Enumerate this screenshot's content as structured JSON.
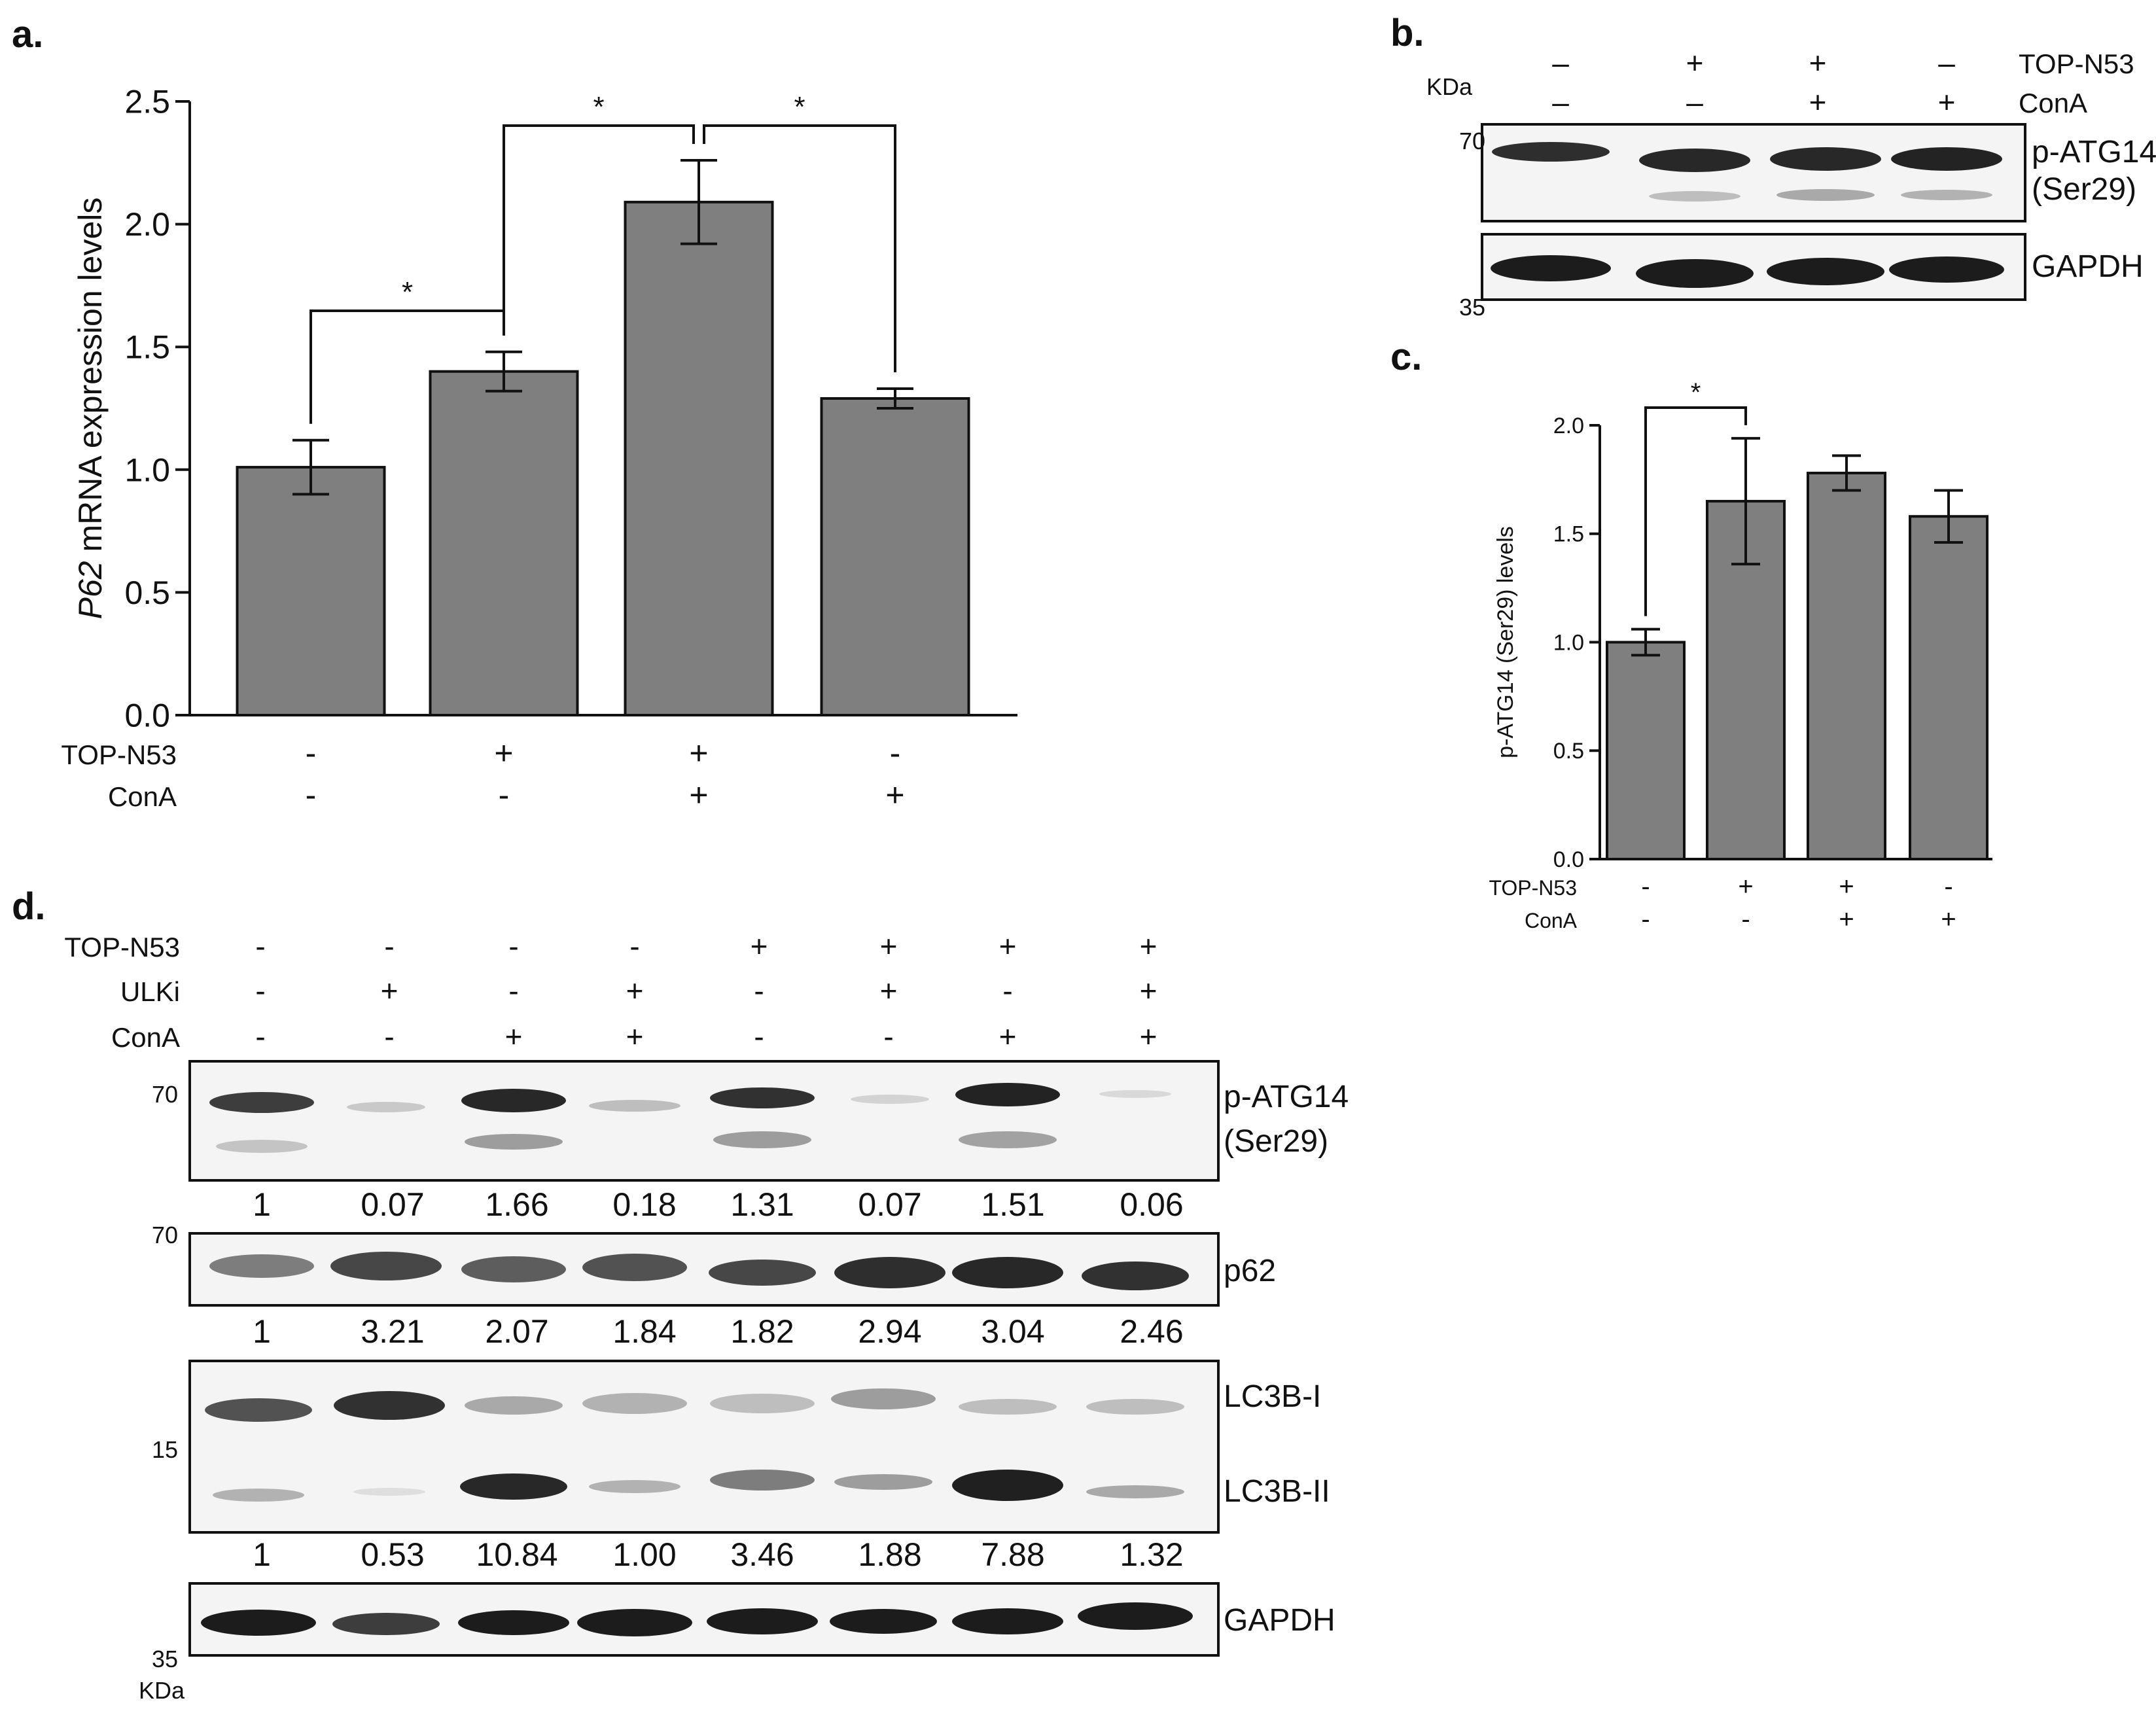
{
  "panel_a": {
    "label": "a.",
    "chart_data": {
      "type": "bar",
      "ylabel_italic": "P62",
      "ylabel_rest": " mRNA expression levels",
      "ylim": [
        0,
        2.5
      ],
      "yticks": [
        "0.0",
        "0.5",
        "1.0",
        "1.5",
        "2.0",
        "2.5"
      ],
      "ytick_values": [
        0,
        0.5,
        1.0,
        1.5,
        2.0,
        2.5
      ],
      "values": [
        1.01,
        1.4,
        2.09,
        1.29
      ],
      "errors": [
        0.11,
        0.08,
        0.17,
        0.04
      ],
      "significance": [
        {
          "from": 0,
          "to": 1,
          "label": "*"
        },
        {
          "from": 1,
          "to": 2,
          "label": "*"
        },
        {
          "from": 2,
          "to": 3,
          "label": "*"
        }
      ],
      "conditions": [
        {
          "name": "TOP-N53",
          "signs": [
            "-",
            "+",
            "+",
            "-"
          ]
        },
        {
          "name": "ConA",
          "signs": [
            "-",
            "-",
            "+",
            "+"
          ]
        }
      ]
    }
  },
  "panel_b": {
    "label": "b.",
    "kda_label": "KDa",
    "conditions": [
      {
        "name": "TOP-N53",
        "signs": [
          "–",
          "+",
          "+",
          "–"
        ]
      },
      {
        "name": "ConA",
        "signs": [
          "–",
          "–",
          "+",
          "+"
        ]
      }
    ],
    "blots": [
      {
        "protein_line1": "p-ATG14",
        "protein_line2": "(Ser29)",
        "mw": "70"
      },
      {
        "protein_line1": "GAPDH",
        "protein_line2": "",
        "mw": "35"
      }
    ]
  },
  "panel_c": {
    "label": "c.",
    "chart_data": {
      "type": "bar",
      "ylabel": "p-ATG14 (Ser29) levels",
      "ylim": [
        0,
        2.0
      ],
      "yticks": [
        "0.0",
        "0.5",
        "1.0",
        "1.5",
        "2.0"
      ],
      "ytick_values": [
        0,
        0.5,
        1.0,
        1.5,
        2.0
      ],
      "values": [
        1.0,
        1.65,
        1.78,
        1.58
      ],
      "errors": [
        0.06,
        0.29,
        0.08,
        0.12
      ],
      "significance": [
        {
          "from": 0,
          "to": 1,
          "label": "*"
        }
      ],
      "conditions": [
        {
          "name": "TOP-N53",
          "signs": [
            "-",
            "+",
            "+",
            "-"
          ]
        },
        {
          "name": "ConA",
          "signs": [
            "-",
            "-",
            "+",
            "+"
          ]
        }
      ]
    }
  },
  "panel_d": {
    "label": "d.",
    "kda_label": "KDa",
    "conditions": [
      {
        "name": "TOP-N53",
        "signs": [
          "-",
          "-",
          "-",
          "-",
          "+",
          "+",
          "+",
          "+"
        ]
      },
      {
        "name": "ULKi",
        "signs": [
          "-",
          "+",
          "-",
          "+",
          "-",
          "+",
          "-",
          "+"
        ]
      },
      {
        "name": "ConA",
        "signs": [
          "-",
          "-",
          "+",
          "+",
          "-",
          "-",
          "+",
          "+"
        ]
      }
    ],
    "blots": [
      {
        "protein_line1": "p-ATG14",
        "protein_line2": "(Ser29)",
        "mw": "70",
        "quant": [
          "1",
          "0.07",
          "1.66",
          "0.18",
          "1.31",
          "0.07",
          "1.51",
          "0.06"
        ]
      },
      {
        "protein_line1": "p62",
        "protein_line2": "",
        "mw": "70",
        "quant": [
          "1",
          "3.21",
          "2.07",
          "1.84",
          "1.82",
          "2.94",
          "3.04",
          "2.46"
        ]
      },
      {
        "protein_line1": "LC3B-I",
        "protein_line2": "LC3B-II",
        "mw": "15",
        "quant": [
          "1",
          "0.53",
          "10.84",
          "1.00",
          "3.46",
          "1.88",
          "7.88",
          "1.32"
        ]
      },
      {
        "protein_line1": "GAPDH",
        "protein_line2": "",
        "mw": "35",
        "quant": []
      }
    ]
  }
}
